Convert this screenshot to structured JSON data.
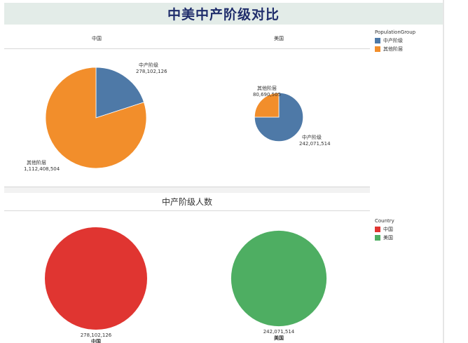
{
  "title": "中美中产阶级对比",
  "legend_population": {
    "title": "PopulationGroup",
    "items": [
      {
        "label": "中产阶级",
        "color": "#4e79a7"
      },
      {
        "label": "其他阶层",
        "color": "#f28e2b"
      }
    ]
  },
  "legend_country": {
    "title": "Country",
    "items": [
      {
        "label": "中国",
        "color": "#e03531"
      },
      {
        "label": "美国",
        "color": "#4eae62"
      }
    ]
  },
  "chart_data": [
    {
      "type": "pie",
      "panel_title": "",
      "columns": [
        "中国",
        "美国"
      ],
      "pies": [
        {
          "country": "中国",
          "slices": [
            {
              "label": "中产阶级",
              "value": 278102126,
              "display": "278,102,126",
              "color": "#4e79a7"
            },
            {
              "label": "其他阶层",
              "value": 1112408504,
              "display": "1,112,408,504",
              "color": "#f28e2b"
            }
          ]
        },
        {
          "country": "美国",
          "slices": [
            {
              "label": "中产阶级",
              "value": 242071514,
              "display": "242,071,514",
              "color": "#4e79a7"
            },
            {
              "label": "其他阶层",
              "value": 80690505,
              "display": "80,690,505",
              "color": "#f28e2b"
            }
          ]
        }
      ]
    },
    {
      "type": "pie",
      "title": "中产阶级人数",
      "pies": [
        {
          "country": "中国",
          "value": 278102126,
          "display": "278,102,126",
          "color": "#e03531"
        },
        {
          "country": "美国",
          "value": 242071514,
          "display": "242,071,514",
          "color": "#4eae62"
        }
      ]
    }
  ]
}
